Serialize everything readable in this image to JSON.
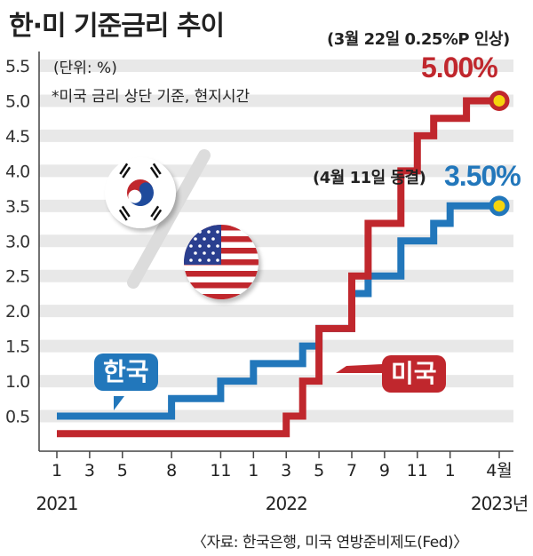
{
  "title": "한·미 기준금리 추이",
  "unit": "(단위: %)",
  "note": "*미국 금리 상단 기준, 현지시간",
  "source": "〈자료: 한국은행, 미국 연방준비제도(Fed)〉",
  "annotation_us": "(3월 22일 0.25%P 인상)",
  "annotation_kr": "(4월 11일 동결)",
  "label_us_value": "5.00%",
  "label_kr_value": "3.50%",
  "legend_kr": "한국",
  "legend_us": "미국",
  "colors": {
    "korea": "#2277bb",
    "us": "#c0272d",
    "grid": "#e8e8e8",
    "accent_dot": "#f5d40d"
  },
  "icons": [
    "korea-flag-icon",
    "us-flag-icon",
    "percent-sign-icon"
  ],
  "chart_data": {
    "type": "line",
    "step": true,
    "y_ticks": [
      "0.5",
      "1.0",
      "1.5",
      "2.0",
      "2.5",
      "3.0",
      "3.5",
      "4.0",
      "4.5",
      "5.0",
      "5.5"
    ],
    "ylim": [
      0,
      5.5
    ],
    "x_ticks": [
      "1",
      "3",
      "5",
      "8",
      "11",
      "1",
      "3",
      "5",
      "7",
      "9",
      "11",
      "1",
      "4월"
    ],
    "x_tick_months": [
      1,
      3,
      5,
      8,
      11,
      13,
      15,
      17,
      19,
      21,
      23,
      25,
      28
    ],
    "x_year_labels": [
      {
        "label": "2021",
        "month": 1
      },
      {
        "label": "2022",
        "month": 15
      },
      {
        "label": "2023년",
        "month": 28
      }
    ],
    "xlim": [
      1,
      28
    ],
    "series": [
      {
        "name": "한국",
        "color": "#2277bb",
        "points": [
          [
            1,
            0.5
          ],
          [
            8,
            0.5
          ],
          [
            8,
            0.75
          ],
          [
            11,
            0.75
          ],
          [
            11,
            1.0
          ],
          [
            13,
            1.0
          ],
          [
            13,
            1.25
          ],
          [
            16,
            1.25
          ],
          [
            16,
            1.5
          ],
          [
            17,
            1.5
          ],
          [
            17,
            1.75
          ],
          [
            19,
            1.75
          ],
          [
            19,
            2.25
          ],
          [
            20,
            2.25
          ],
          [
            20,
            2.5
          ],
          [
            22,
            2.5
          ],
          [
            22,
            3.0
          ],
          [
            24,
            3.0
          ],
          [
            24,
            3.25
          ],
          [
            25,
            3.25
          ],
          [
            25,
            3.5
          ],
          [
            28,
            3.5
          ]
        ]
      },
      {
        "name": "미국",
        "color": "#c0272d",
        "points": [
          [
            1,
            0.25
          ],
          [
            15,
            0.25
          ],
          [
            15,
            0.5
          ],
          [
            16,
            0.5
          ],
          [
            16,
            1.0
          ],
          [
            17,
            1.0
          ],
          [
            17,
            1.75
          ],
          [
            19,
            1.75
          ],
          [
            19,
            2.5
          ],
          [
            20,
            2.5
          ],
          [
            20,
            3.25
          ],
          [
            22,
            3.25
          ],
          [
            22,
            4.0
          ],
          [
            23,
            4.0
          ],
          [
            23,
            4.5
          ],
          [
            24,
            4.5
          ],
          [
            24,
            4.75
          ],
          [
            26,
            4.75
          ],
          [
            26,
            5.0
          ],
          [
            28,
            5.0
          ]
        ]
      }
    ]
  }
}
